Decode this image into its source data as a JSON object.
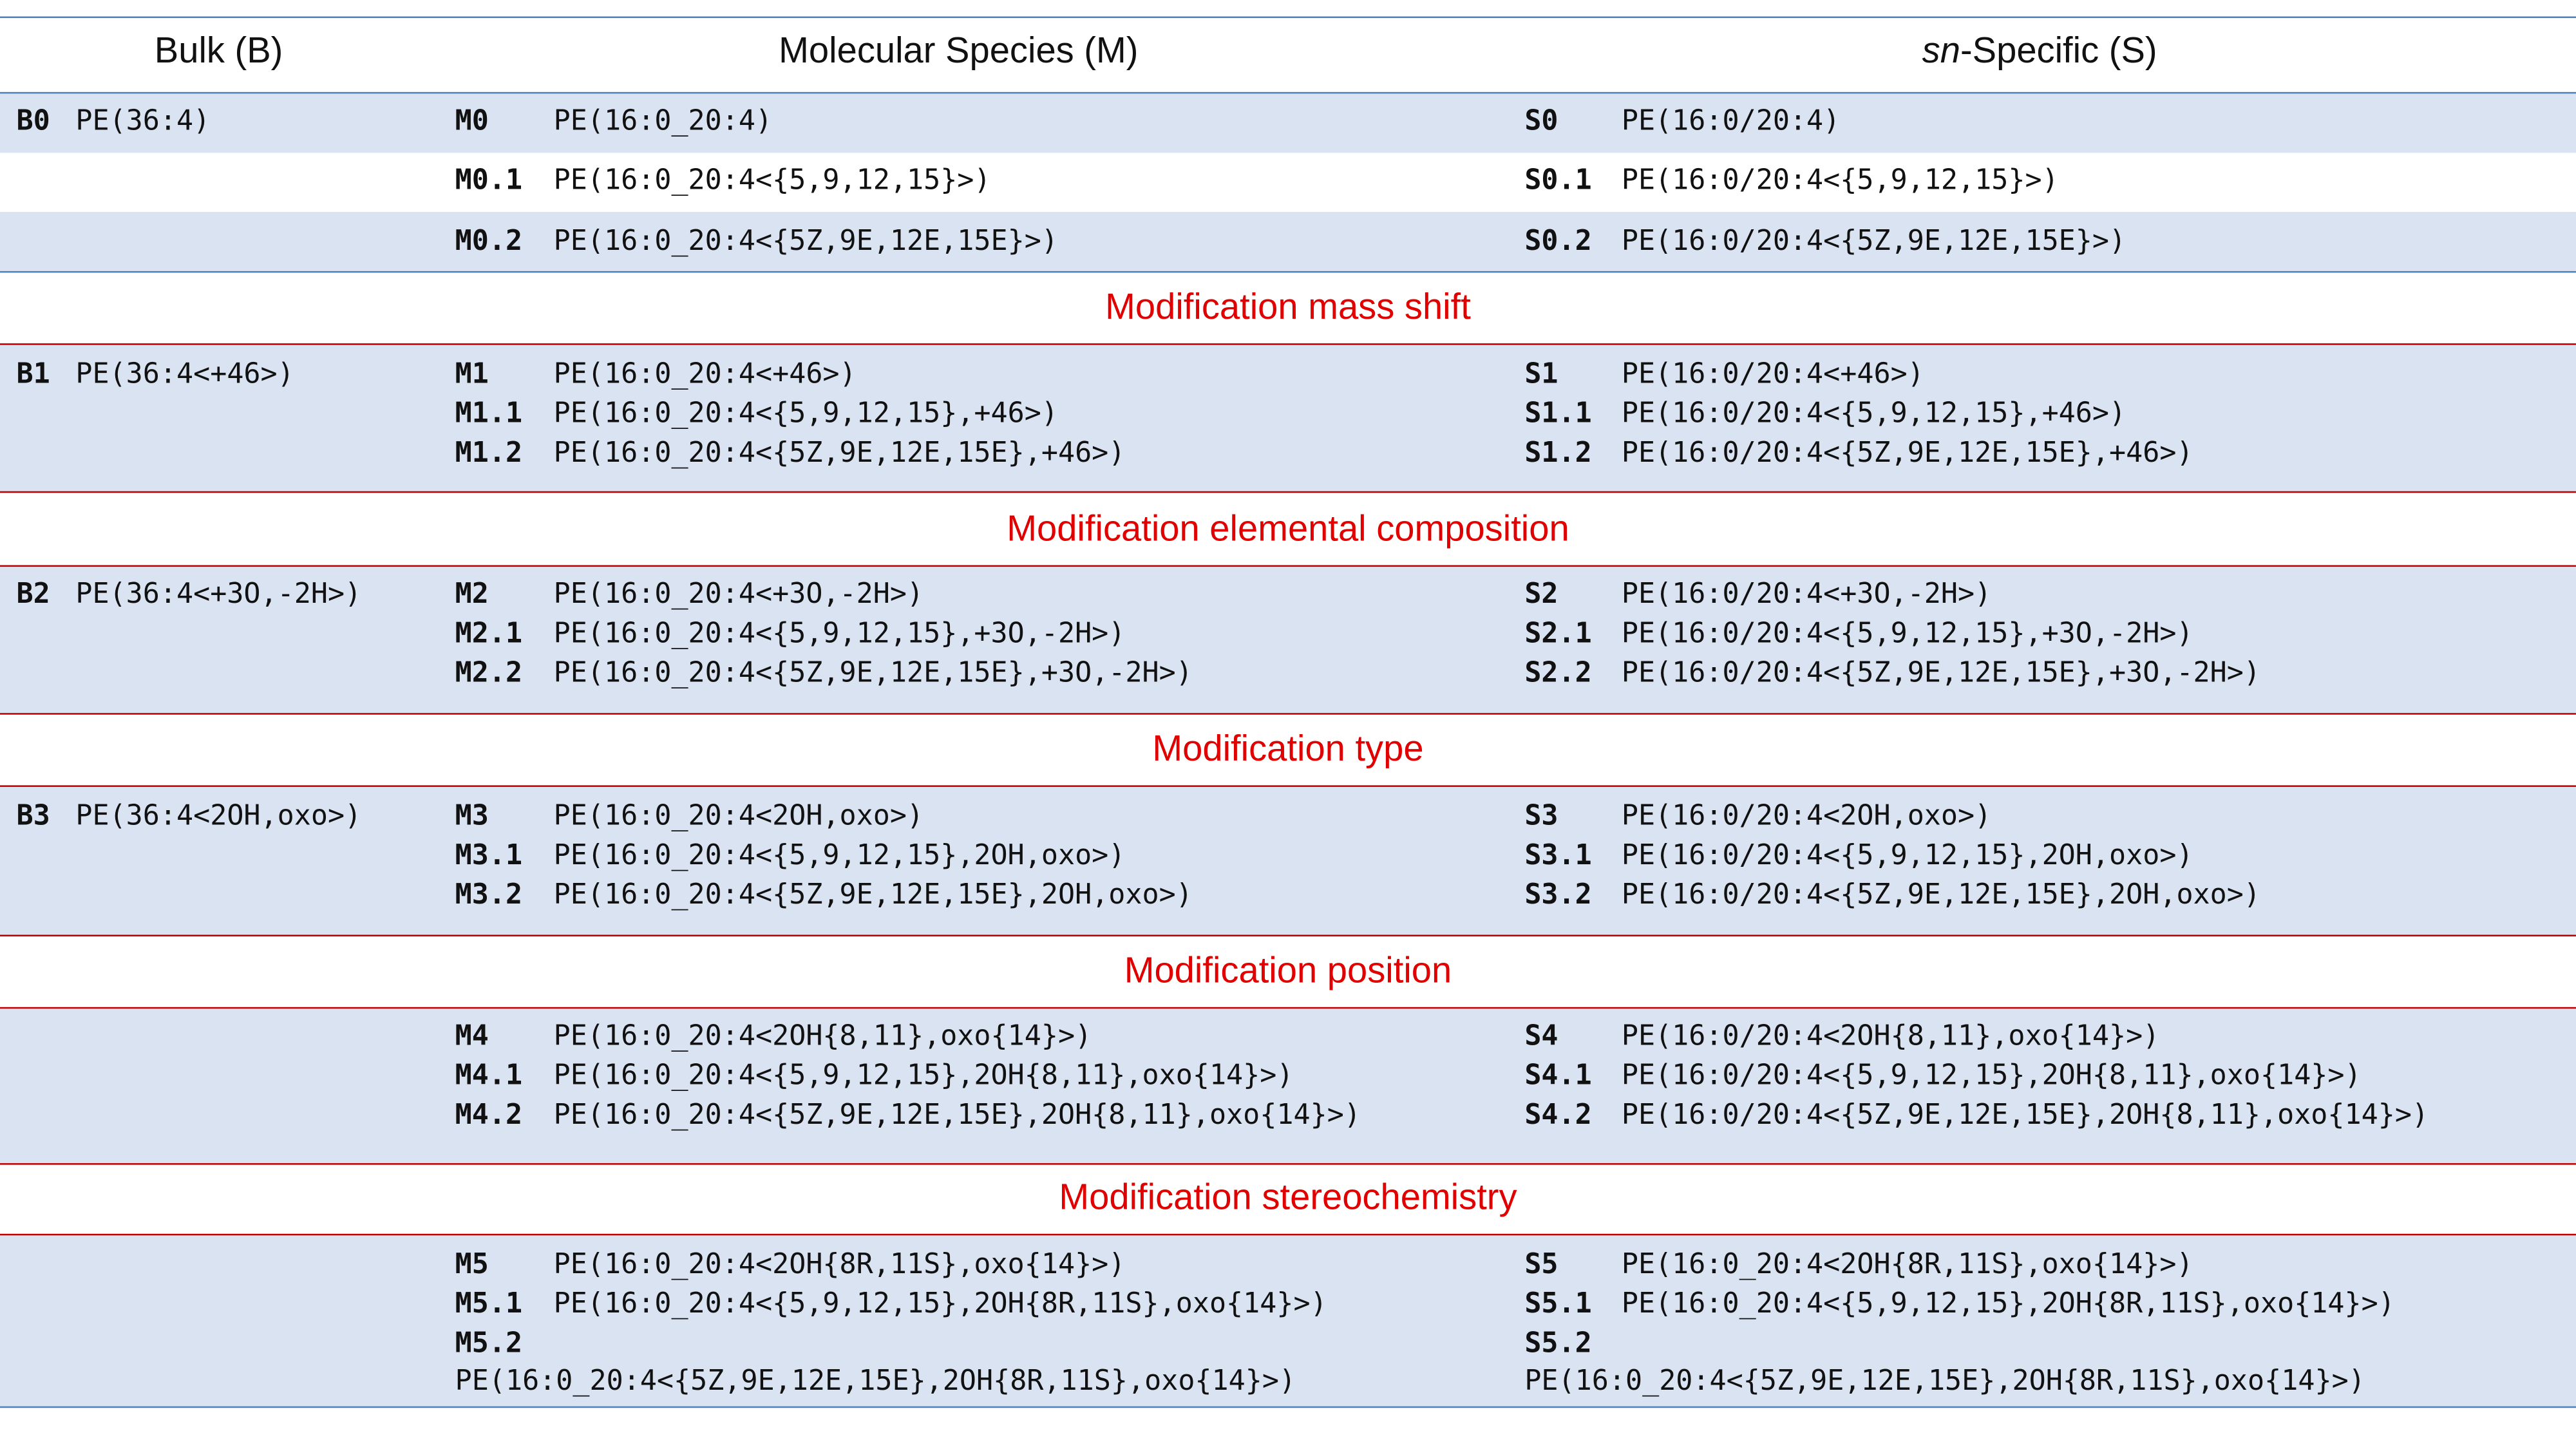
{
  "header": {
    "bulk": "Bulk (B)",
    "molecular": "Molecular Species (M)",
    "sn_italic": "sn",
    "sn_rest": "-Specific (S)"
  },
  "sections": {
    "s1": "Modification mass shift",
    "s2": "Modification elemental composition",
    "s3": "Modification type",
    "s4": "Modification position",
    "s5": "Modification stereochemistry"
  },
  "rows": {
    "B0": {
      "id": "B0",
      "name": "PE(36:4)"
    },
    "M0": {
      "id": "M0",
      "name": "PE(16:0_20:4)"
    },
    "S0": {
      "id": "S0",
      "name": "PE(16:0/20:4)"
    },
    "M01": {
      "id": "M0.1",
      "name": "PE(16:0_20:4<{5,9,12,15}>)"
    },
    "S01": {
      "id": "S0.1",
      "name": "PE(16:0/20:4<{5,9,12,15}>)"
    },
    "M02": {
      "id": "M0.2",
      "name": "PE(16:0_20:4<{5Z,9E,12E,15E}>)"
    },
    "S02": {
      "id": "S0.2",
      "name": "PE(16:0/20:4<{5Z,9E,12E,15E}>)"
    },
    "B1": {
      "id": "B1",
      "name": "PE(36:4<+46>)"
    },
    "M1": {
      "id": "M1",
      "name": "PE(16:0_20:4<+46>)"
    },
    "M11": {
      "id": "M1.1",
      "name": "PE(16:0_20:4<{5,9,12,15},+46>)"
    },
    "M12": {
      "id": "M1.2",
      "name": "PE(16:0_20:4<{5Z,9E,12E,15E},+46>)"
    },
    "S1": {
      "id": "S1",
      "name": "PE(16:0/20:4<+46>)"
    },
    "S11": {
      "id": "S1.1",
      "name": "PE(16:0/20:4<{5,9,12,15},+46>)"
    },
    "S12": {
      "id": "S1.2",
      "name": "PE(16:0/20:4<{5Z,9E,12E,15E},+46>)"
    },
    "B2": {
      "id": "B2",
      "name": "PE(36:4<+3O,-2H>)"
    },
    "M2": {
      "id": "M2",
      "name": "PE(16:0_20:4<+3O,-2H>)"
    },
    "M21": {
      "id": "M2.1",
      "name": "PE(16:0_20:4<{5,9,12,15},+3O,-2H>)"
    },
    "M22": {
      "id": "M2.2",
      "name": "PE(16:0_20:4<{5Z,9E,12E,15E},+3O,-2H>)"
    },
    "S2": {
      "id": "S2",
      "name": "PE(16:0/20:4<+3O,-2H>)"
    },
    "S21": {
      "id": "S2.1",
      "name": "PE(16:0/20:4<{5,9,12,15},+3O,-2H>)"
    },
    "S22": {
      "id": "S2.2",
      "name": "PE(16:0/20:4<{5Z,9E,12E,15E},+3O,-2H>)"
    },
    "B3": {
      "id": "B3",
      "name": "PE(36:4<2OH,oxo>)"
    },
    "M3": {
      "id": "M3",
      "name": "PE(16:0_20:4<2OH,oxo>)"
    },
    "M31": {
      "id": "M3.1",
      "name": "PE(16:0_20:4<{5,9,12,15},2OH,oxo>)"
    },
    "M32": {
      "id": "M3.2",
      "name": "PE(16:0_20:4<{5Z,9E,12E,15E},2OH,oxo>)"
    },
    "S3": {
      "id": "S3",
      "name": "PE(16:0/20:4<2OH,oxo>)"
    },
    "S31": {
      "id": "S3.1",
      "name": "PE(16:0/20:4<{5,9,12,15},2OH,oxo>)"
    },
    "S32": {
      "id": "S3.2",
      "name": "PE(16:0/20:4<{5Z,9E,12E,15E},2OH,oxo>)"
    },
    "M4": {
      "id": "M4",
      "name": "PE(16:0_20:4<2OH{8,11},oxo{14}>)"
    },
    "M41": {
      "id": "M4.1",
      "name": "PE(16:0_20:4<{5,9,12,15},2OH{8,11},oxo{14}>)"
    },
    "M42": {
      "id": "M4.2",
      "name": "PE(16:0_20:4<{5Z,9E,12E,15E},2OH{8,11},oxo{14}>)"
    },
    "S4": {
      "id": "S4",
      "name": "PE(16:0/20:4<2OH{8,11},oxo{14}>)"
    },
    "S41": {
      "id": "S4.1",
      "name": "PE(16:0/20:4<{5,9,12,15},2OH{8,11},oxo{14}>)"
    },
    "S42": {
      "id": "S4.2",
      "name": "PE(16:0/20:4<{5Z,9E,12E,15E},2OH{8,11},oxo{14}>)"
    },
    "M5": {
      "id": "M5",
      "name": "PE(16:0_20:4<2OH{8R,11S},oxo{14}>)"
    },
    "M51": {
      "id": "M5.1",
      "name": "PE(16:0_20:4<{5,9,12,15},2OH{8R,11S},oxo{14}>)"
    },
    "M52": {
      "id": "M5.2",
      "name": "PE(16:0_20:4<{5Z,9E,12E,15E},2OH{8R,11S},oxo{14}>)"
    },
    "S5": {
      "id": "S5",
      "name": "PE(16:0_20:4<2OH{8R,11S},oxo{14}>)"
    },
    "S51": {
      "id": "S5.1",
      "name": "PE(16:0_20:4<{5,9,12,15},2OH{8R,11S},oxo{14}>)"
    },
    "S52": {
      "id": "S5.2",
      "name": "PE(16:0_20:4<{5Z,9E,12E,15E},2OH{8R,11S},oxo{14}>)"
    }
  }
}
